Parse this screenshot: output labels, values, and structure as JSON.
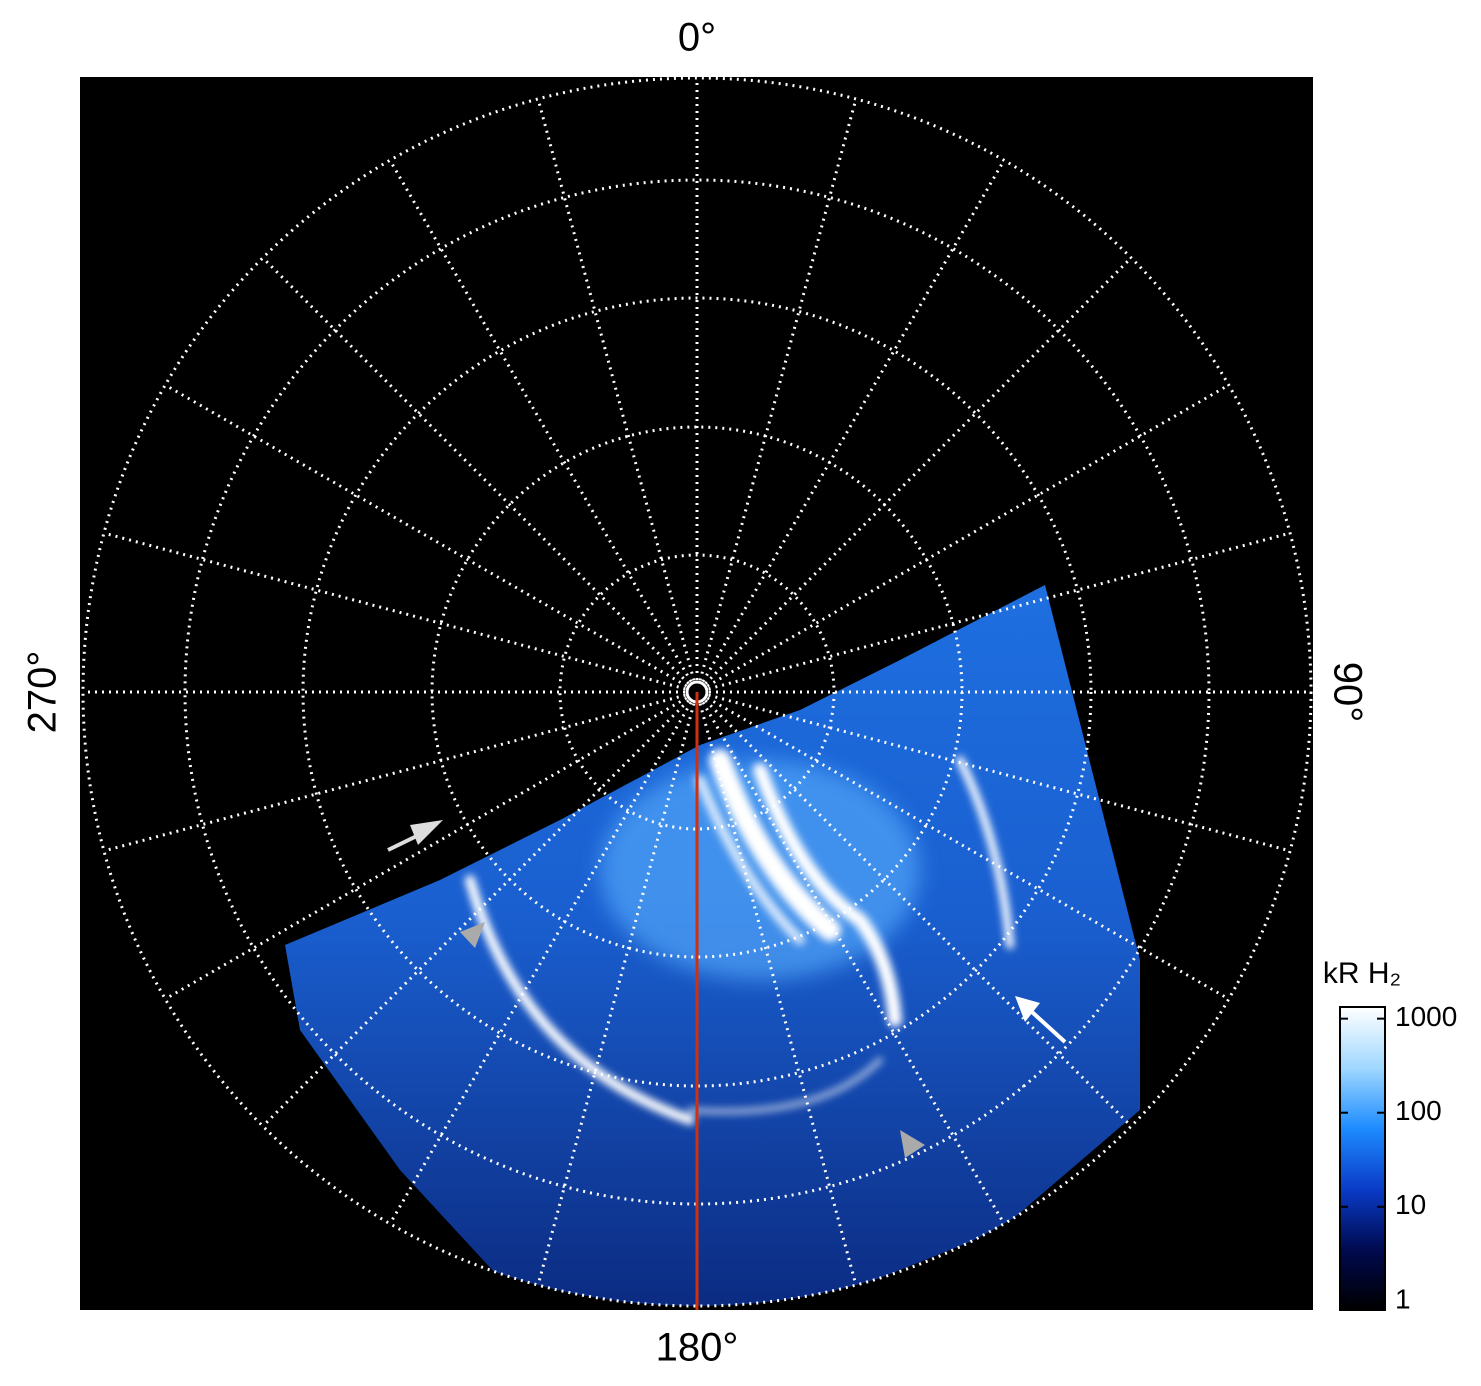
{
  "chart_data": {
    "type": "polar-image",
    "angle_labels": [
      "0°",
      "90°",
      "180°",
      "270°"
    ],
    "colorbar": {
      "title": "kR H₂",
      "log": true,
      "ylim": [
        0.8,
        1330
      ],
      "yticks": [
        1,
        10,
        100,
        1000
      ],
      "colors": [
        "#000000",
        "#000a50",
        "#0a3cc8",
        "#1e8cff",
        "#a0d8ff",
        "#ffffff"
      ]
    }
  }
}
